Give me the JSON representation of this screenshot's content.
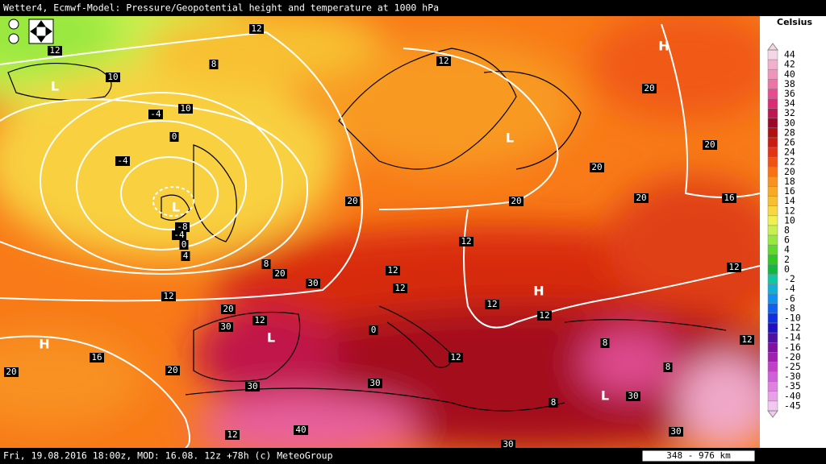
{
  "header": {
    "title": "Wetter4, Ecmwf-Model: Pressure/Geopotential height and temperature at 1000 hPa"
  },
  "legend": {
    "unit": "Celsius",
    "levels": [
      {
        "label": "44",
        "color": "#f6d6e6"
      },
      {
        "label": "42",
        "color": "#f2b0cc"
      },
      {
        "label": "40",
        "color": "#f094bc"
      },
      {
        "label": "38",
        "color": "#ee74a8"
      },
      {
        "label": "36",
        "color": "#e84c90"
      },
      {
        "label": "34",
        "color": "#dc2a74"
      },
      {
        "label": "32",
        "color": "#bc1650"
      },
      {
        "label": "30",
        "color": "#9c0828"
      },
      {
        "label": "28",
        "color": "#b01010"
      },
      {
        "label": "26",
        "color": "#cc1a10"
      },
      {
        "label": "24",
        "color": "#e43212"
      },
      {
        "label": "22",
        "color": "#f05214"
      },
      {
        "label": "20",
        "color": "#f87214"
      },
      {
        "label": "18",
        "color": "#f89220"
      },
      {
        "label": "16",
        "color": "#f8aa24"
      },
      {
        "label": "14",
        "color": "#f8c030"
      },
      {
        "label": "12",
        "color": "#f8d840"
      },
      {
        "label": "10",
        "color": "#f0f050"
      },
      {
        "label": "8",
        "color": "#c8f050"
      },
      {
        "label": "6",
        "color": "#98e840"
      },
      {
        "label": "4",
        "color": "#60d830"
      },
      {
        "label": "2",
        "color": "#30c820"
      },
      {
        "label": "0",
        "color": "#10b840"
      },
      {
        "label": "-2",
        "color": "#10c8a0"
      },
      {
        "label": "-4",
        "color": "#10b0d8"
      },
      {
        "label": "-6",
        "color": "#1090f0"
      },
      {
        "label": "-8",
        "color": "#1060f0"
      },
      {
        "label": "-10",
        "color": "#1030e0"
      },
      {
        "label": "-12",
        "color": "#2010c0"
      },
      {
        "label": "-14",
        "color": "#5010a0"
      },
      {
        "label": "-16",
        "color": "#8010a0"
      },
      {
        "label": "-20",
        "color": "#a020b0"
      },
      {
        "label": "-25",
        "color": "#c040c8"
      },
      {
        "label": "-30",
        "color": "#d060d8"
      },
      {
        "label": "-35",
        "color": "#e080e0"
      },
      {
        "label": "-40",
        "color": "#e8a0e8"
      },
      {
        "label": "-45",
        "color": "#f0c8f0"
      }
    ]
  },
  "map": {
    "pressure_centers": [
      "H",
      "L",
      "L",
      "L",
      "H",
      "H",
      "L",
      "L"
    ],
    "contour_labels": [
      "12",
      "12",
      "8",
      "10",
      "12",
      "10",
      "-4",
      "0",
      "-4",
      "-8",
      "-4",
      "0",
      "4",
      "8",
      "20",
      "20",
      "20",
      "20",
      "20",
      "20",
      "20",
      "16",
      "12",
      "12",
      "12",
      "12",
      "12",
      "12",
      "30",
      "12",
      "20",
      "12",
      "30",
      "16",
      "20",
      "20",
      "12",
      "30",
      "30",
      "40",
      "12",
      "30",
      "8",
      "30",
      "8",
      "12",
      "30",
      "0",
      "8"
    ]
  },
  "footer": {
    "valid": "Fri, 19.08.2016 18:00z, MOD: 16.08. 12z +78h (c) MeteoGroup",
    "scale": "348 - 976 km"
  }
}
